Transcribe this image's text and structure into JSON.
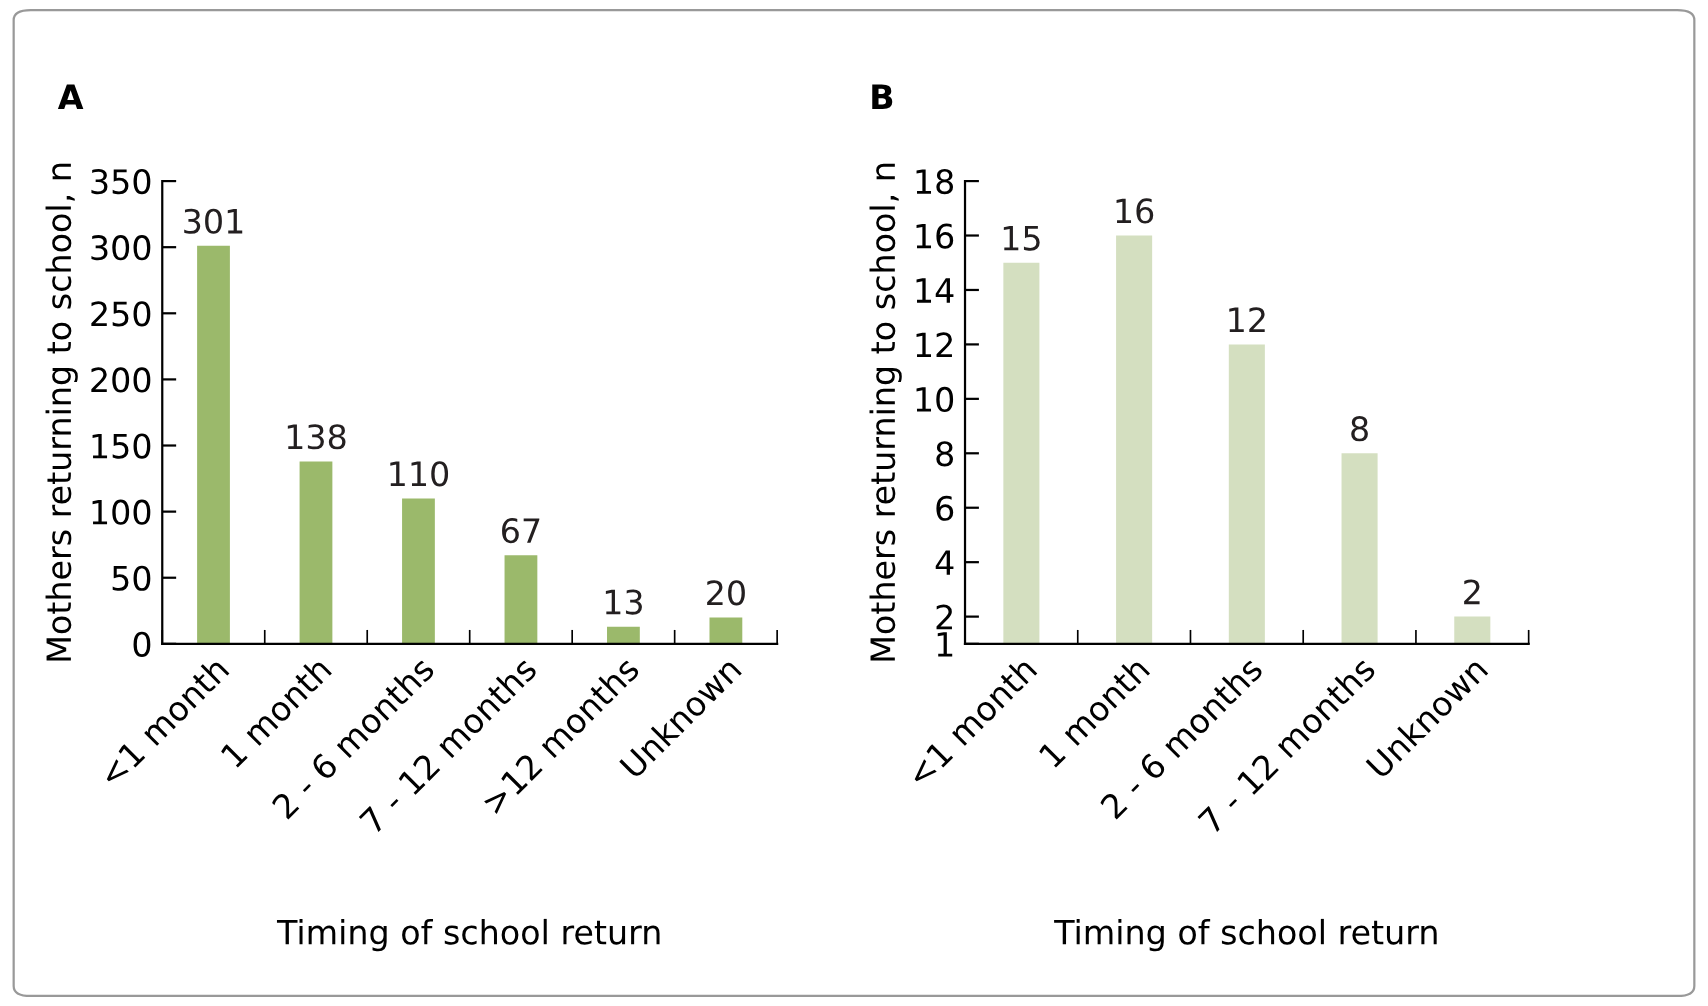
{
  "chart_data": [
    {
      "type": "bar",
      "title": "A",
      "xlabel": "Timing of school return",
      "ylabel": "Mothers returning to school, n",
      "categories": [
        "<1 month",
        "1 month",
        "2 - 6 months",
        "7 - 12 months",
        ">12 months",
        "Unknown"
      ],
      "values": [
        301,
        138,
        110,
        67,
        13,
        20
      ],
      "color": "#9bb96b",
      "ylim": [
        0,
        350
      ],
      "yticks": [
        0,
        50,
        100,
        150,
        200,
        250,
        300,
        350
      ],
      "data_labels": true,
      "grid": false,
      "legend": false
    },
    {
      "type": "bar",
      "title": "B",
      "xlabel": "Timing of school return",
      "ylabel": "Mothers returning to school, n",
      "categories": [
        "<1 month",
        "1 month",
        "2 - 6 months",
        "7 - 12 months",
        "Unknown"
      ],
      "values": [
        15,
        16,
        12,
        8,
        2
      ],
      "color": "#d4dfc0",
      "ylim": [
        1,
        18
      ],
      "yticks": [
        1,
        2,
        4,
        6,
        8,
        10,
        12,
        14,
        16,
        18
      ],
      "data_labels": true,
      "grid": false,
      "legend": false
    }
  ]
}
